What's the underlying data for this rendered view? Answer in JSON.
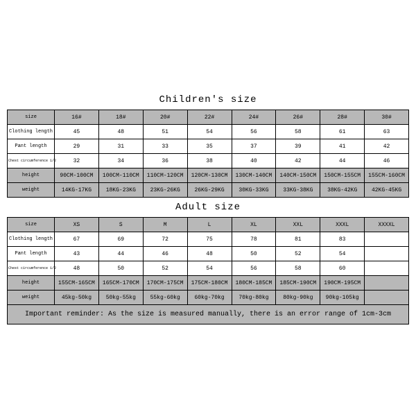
{
  "colors": {
    "background": "#ffffff",
    "shaded": "#b8b8b8",
    "border": "#000000",
    "text": "#000000"
  },
  "children": {
    "title": "Children's size",
    "row_labels": [
      "size",
      "Clothing length",
      "Pant length",
      "Chest circumference 1/2",
      "height",
      "weight"
    ],
    "sizes": [
      "16#",
      "18#",
      "20#",
      "22#",
      "24#",
      "26#",
      "28#",
      "30#"
    ],
    "clothing": [
      "45",
      "48",
      "51",
      "54",
      "56",
      "58",
      "61",
      "63"
    ],
    "pant": [
      "29",
      "31",
      "33",
      "35",
      "37",
      "39",
      "41",
      "42"
    ],
    "chest": [
      "32",
      "34",
      "36",
      "38",
      "40",
      "42",
      "44",
      "46"
    ],
    "height": [
      "90CM-100CM",
      "100CM-110CM",
      "110CM-120CM",
      "120CM-130CM",
      "130CM-140CM",
      "140CM-150CM",
      "150CM-155CM",
      "155CM-160CM"
    ],
    "weight": [
      "14KG-17KG",
      "18KG-23KG",
      "23KG-26KG",
      "26KG-29KG",
      "30KG-33KG",
      "33KG-38KG",
      "38KG-42KG",
      "42KG-45KG"
    ]
  },
  "adult": {
    "title": "Adult size",
    "row_labels": [
      "size",
      "Clothing length",
      "Pant length",
      "Chest circumference 1/2",
      "height",
      "weight"
    ],
    "sizes": [
      "XS",
      "S",
      "M",
      "L",
      "XL",
      "XXL",
      "XXXL",
      "XXXXL"
    ],
    "clothing": [
      "67",
      "69",
      "72",
      "75",
      "78",
      "81",
      "83",
      ""
    ],
    "pant": [
      "43",
      "44",
      "46",
      "48",
      "50",
      "52",
      "54",
      ""
    ],
    "chest": [
      "48",
      "50",
      "52",
      "54",
      "56",
      "58",
      "60",
      ""
    ],
    "height": [
      "155CM-165CM",
      "165CM-170CM",
      "170CM-175CM",
      "175CM-180CM",
      "180CM-185CM",
      "185CM-190CM",
      "190CM-195CM",
      ""
    ],
    "weight": [
      "45kg-50kg",
      "50kg-55kg",
      "55kg-60kg",
      "60kg-70kg",
      "70kg-80kg",
      "80kg-90kg",
      "90kg-105kg",
      ""
    ]
  },
  "reminder": "Important reminder: As the size is measured manually, there is an error range of 1cm-3cm"
}
